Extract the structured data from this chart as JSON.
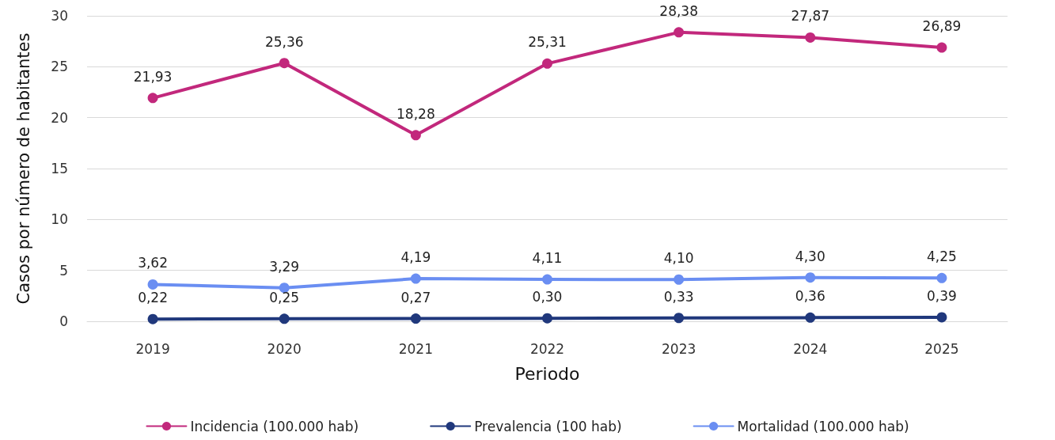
{
  "chart_data": {
    "type": "line",
    "xlabel": "Periodo",
    "ylabel": "Casos por número de habitantes",
    "categories": [
      "2019",
      "2020",
      "2021",
      "2022",
      "2023",
      "2024",
      "2025"
    ],
    "series": [
      {
        "name": "Incidencia (100.000 hab)",
        "color": "#c2287c",
        "values": [
          21.93,
          25.36,
          18.28,
          25.31,
          28.38,
          27.87,
          26.89
        ],
        "value_labels": [
          "21,93",
          "25,36",
          "18,28",
          "25,31",
          "28,38",
          "27,87",
          "26,89"
        ]
      },
      {
        "name": "Prevalencia (100 hab)",
        "color": "#20387c",
        "values": [
          0.22,
          0.25,
          0.27,
          0.3,
          0.33,
          0.36,
          0.39
        ],
        "value_labels": [
          "0,22",
          "0,25",
          "0,27",
          "0,30",
          "0,33",
          "0,36",
          "0,39"
        ]
      },
      {
        "name": "Mortalidad (100.000 hab)",
        "color": "#6a8ef2",
        "values": [
          3.62,
          3.29,
          4.19,
          4.11,
          4.1,
          4.3,
          4.25
        ],
        "value_labels": [
          "3,62",
          "3,29",
          "4,19",
          "4,11",
          "4,10",
          "4,30",
          "4,25"
        ]
      }
    ],
    "ylim": [
      0,
      30
    ],
    "yticks": [
      0,
      5,
      10,
      15,
      20,
      25,
      30
    ],
    "grid": "y",
    "legend": "bottom",
    "marker": "circle",
    "line_style": "solid"
  }
}
